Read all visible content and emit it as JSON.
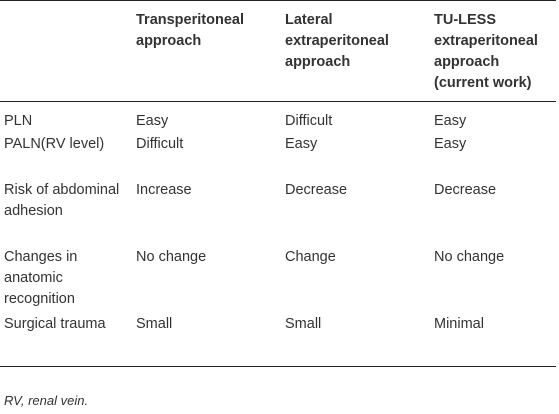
{
  "table": {
    "headers": [
      "",
      "Transperitoneal approach",
      "Lateral extraperitoneal approach",
      "TU-LESS extraperitoneal approach (current work)"
    ],
    "rows": [
      [
        "PLN",
        "Easy",
        "Difficult",
        "Easy"
      ],
      [
        "PALN(RV level)",
        "Difficult",
        "Easy",
        "Easy"
      ],
      [
        "Risk of abdominal adhesion",
        "Increase",
        "Decrease",
        "Decrease"
      ],
      [
        "Changes in anatomic recognition",
        "No change",
        "Change",
        "No change"
      ],
      [
        "Surgical trauma",
        "Small",
        "Small",
        "Minimal"
      ]
    ]
  },
  "footnote": "RV, renal vein."
}
